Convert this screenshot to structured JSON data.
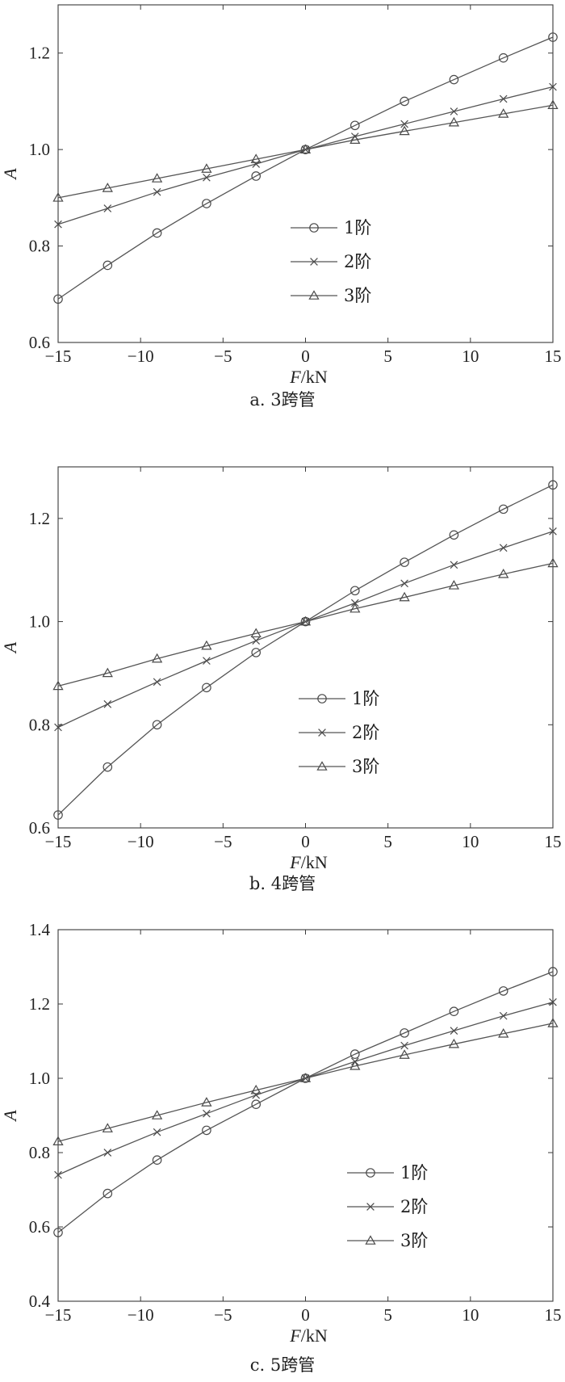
{
  "chart_data": [
    {
      "type": "line",
      "caption": "a. 3跨管",
      "xlabel_var": "F",
      "xlabel_unit": "/kN",
      "ylabel": "A",
      "xlim": [
        -15,
        15
      ],
      "ylim": [
        0.6,
        1.3
      ],
      "xticks": [
        -15,
        -10,
        -5,
        0,
        5,
        10,
        15
      ],
      "yticks": [
        0.6,
        0.8,
        1.0,
        1.2
      ],
      "legend_position": "center",
      "x": [
        -15,
        -12,
        -9,
        -6,
        -3,
        0,
        3,
        6,
        9,
        12,
        15
      ],
      "series": [
        {
          "name": "1阶",
          "marker": "circle",
          "values": [
            0.69,
            0.76,
            0.827,
            0.888,
            0.945,
            1.0,
            1.05,
            1.1,
            1.145,
            1.19,
            1.233
          ]
        },
        {
          "name": "2阶",
          "marker": "x",
          "values": [
            0.845,
            0.878,
            0.912,
            0.942,
            0.97,
            1.0,
            1.027,
            1.053,
            1.079,
            1.105,
            1.13
          ]
        },
        {
          "name": "3阶",
          "marker": "triangle",
          "values": [
            0.9,
            0.92,
            0.94,
            0.96,
            0.98,
            1.0,
            1.02,
            1.038,
            1.056,
            1.074,
            1.092
          ]
        }
      ]
    },
    {
      "type": "line",
      "caption": "b. 4跨管",
      "xlabel_var": "F",
      "xlabel_unit": "/kN",
      "ylabel": "A",
      "xlim": [
        -15,
        15
      ],
      "ylim": [
        0.6,
        1.3
      ],
      "xticks": [
        -15,
        -10,
        -5,
        0,
        5,
        10,
        15
      ],
      "yticks": [
        0.6,
        0.8,
        1.0,
        1.2
      ],
      "legend_position": "center",
      "x": [
        -15,
        -12,
        -9,
        -6,
        -3,
        0,
        3,
        6,
        9,
        12,
        15
      ],
      "series": [
        {
          "name": "1阶",
          "marker": "circle",
          "values": [
            0.625,
            0.718,
            0.8,
            0.872,
            0.94,
            1.0,
            1.06,
            1.115,
            1.168,
            1.218,
            1.265
          ]
        },
        {
          "name": "2阶",
          "marker": "x",
          "values": [
            0.795,
            0.84,
            0.883,
            0.924,
            0.963,
            1.0,
            1.036,
            1.074,
            1.11,
            1.143,
            1.175
          ]
        },
        {
          "name": "3阶",
          "marker": "triangle",
          "values": [
            0.875,
            0.9,
            0.928,
            0.953,
            0.977,
            1.0,
            1.025,
            1.047,
            1.07,
            1.092,
            1.113
          ]
        }
      ]
    },
    {
      "type": "line",
      "caption": "c. 5跨管",
      "xlabel_var": "F",
      "xlabel_unit": "/kN",
      "ylabel": "A",
      "xlim": [
        -15,
        15
      ],
      "ylim": [
        0.4,
        1.4
      ],
      "xticks": [
        -15,
        -10,
        -5,
        0,
        5,
        10,
        15
      ],
      "yticks": [
        0.4,
        0.6,
        0.8,
        1.0,
        1.2,
        1.4
      ],
      "legend_position": "lower-right",
      "x": [
        -15,
        -12,
        -9,
        -6,
        -3,
        0,
        3,
        6,
        9,
        12,
        15
      ],
      "series": [
        {
          "name": "1阶",
          "marker": "circle",
          "values": [
            0.585,
            0.69,
            0.78,
            0.86,
            0.93,
            1.0,
            1.065,
            1.122,
            1.18,
            1.235,
            1.287
          ]
        },
        {
          "name": "2阶",
          "marker": "x",
          "values": [
            0.74,
            0.8,
            0.855,
            0.905,
            0.955,
            1.0,
            1.045,
            1.088,
            1.128,
            1.168,
            1.205
          ]
        },
        {
          "name": "3阶",
          "marker": "triangle",
          "values": [
            0.83,
            0.865,
            0.9,
            0.935,
            0.968,
            1.0,
            1.033,
            1.063,
            1.092,
            1.12,
            1.148
          ]
        }
      ]
    }
  ]
}
